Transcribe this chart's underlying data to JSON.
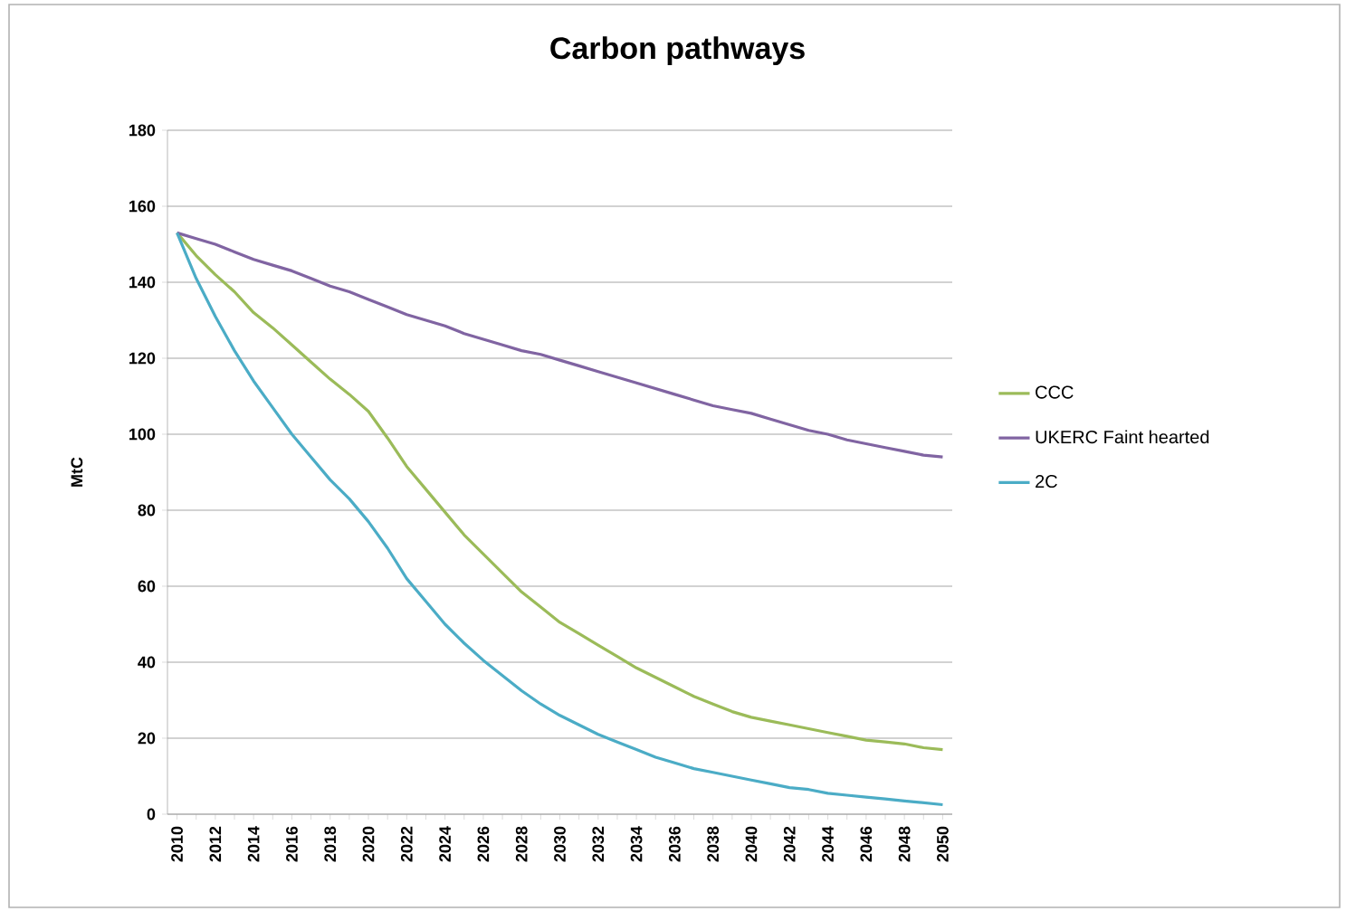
{
  "chart_data": {
    "type": "line",
    "title": "Carbon pathways",
    "ylabel": "MtC",
    "categories": [
      "2010",
      null,
      "2012",
      null,
      "2014",
      null,
      "2016",
      null,
      "2018",
      null,
      "2020",
      null,
      "2022",
      null,
      "2024",
      null,
      "2026",
      null,
      "2028",
      null,
      "2030",
      null,
      "2032",
      null,
      "2034",
      null,
      "2036",
      null,
      "2038",
      null,
      "2040",
      null,
      "2042",
      null,
      "2044",
      null,
      "2046",
      null,
      "2048",
      null,
      "2050"
    ],
    "ylim": [
      0,
      180
    ],
    "yticks": [
      0,
      20,
      40,
      60,
      80,
      100,
      120,
      140,
      160,
      180
    ],
    "grid": "y",
    "legend": "right",
    "marker": "none",
    "line_style": "solid",
    "series": [
      {
        "name": "CCC",
        "color": "#9bbb59",
        "values": [
          153,
          147,
          142,
          137.5,
          132,
          128,
          123.5,
          119,
          114.5,
          110.5,
          106,
          99,
          91.5,
          85.5,
          79.5,
          73.5,
          68.5,
          63.5,
          58.5,
          54.5,
          50.5,
          47.5,
          44.5,
          41.5,
          38.5,
          36,
          33.5,
          31,
          29,
          27,
          25.5,
          24.5,
          23.5,
          22.5,
          21.5,
          20.5,
          19.5,
          19,
          18.5,
          17.5,
          17
        ]
      },
      {
        "name": "UKERC Faint hearted",
        "color": "#8064a2",
        "values": [
          153,
          151.5,
          150,
          148,
          146,
          144.5,
          143,
          141,
          139,
          137.5,
          135.5,
          133.5,
          131.5,
          130,
          128.5,
          126.5,
          125,
          123.5,
          122,
          121,
          119.5,
          118,
          116.5,
          115,
          113.5,
          112,
          110.5,
          109,
          107.5,
          106.5,
          105.5,
          104,
          102.5,
          101,
          100,
          98.5,
          97.5,
          96.5,
          95.5,
          94.5,
          94
        ]
      },
      {
        "name": "2C",
        "color": "#4bacc6",
        "values": [
          153,
          141,
          131,
          122,
          114,
          107,
          100,
          94,
          88,
          83,
          77,
          70,
          62,
          56,
          50,
          45,
          40.5,
          36.5,
          32.5,
          29,
          26,
          23.5,
          21,
          19,
          17,
          15,
          13.5,
          12,
          11,
          10,
          9,
          8,
          7,
          6.5,
          5.5,
          5,
          4.5,
          4,
          3.5,
          3,
          2.5
        ]
      }
    ]
  }
}
